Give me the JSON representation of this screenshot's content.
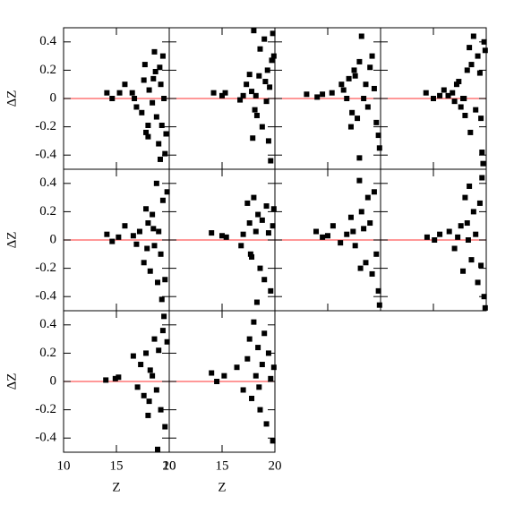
{
  "chart_data": [
    {
      "type": "scatter",
      "ylabel": "ΔZ",
      "color": "#000000",
      "xlim": [
        10,
        20
      ],
      "ylim": [
        -0.5,
        0.5
      ],
      "xticks": [
        10,
        15,
        20
      ],
      "yticks": [
        -0.4,
        -0.2,
        0,
        0.2,
        0.4
      ],
      "xtick_labels": false,
      "ytick_labels": true,
      "reference_line": {
        "y": 0,
        "color": "#ff5a5a"
      },
      "x": [
        14.1,
        14.6,
        15.3,
        15.8,
        16.5,
        16.7,
        16.9,
        17.4,
        17.6,
        17.7,
        17.8,
        18.0,
        18.1,
        18.4,
        18.6,
        18.7,
        18.8,
        19.0,
        19.1,
        19.2,
        19.3,
        19.4,
        19.5,
        19.6,
        19.7,
        19.15,
        18.5,
        18.0
      ],
      "values": [
        0.04,
        0.0,
        0.04,
        0.1,
        0.04,
        0.0,
        -0.06,
        -0.1,
        0.13,
        0.24,
        -0.24,
        -0.27,
        0.06,
        -0.03,
        0.33,
        0.19,
        -0.13,
        -0.32,
        0.22,
        0.1,
        -0.19,
        0.3,
        0.0,
        -0.39,
        -0.25,
        -0.43,
        0.14,
        -0.19
      ]
    },
    {
      "type": "scatter",
      "color": "#000000",
      "xlim": [
        10,
        20
      ],
      "ylim": [
        -0.5,
        0.5
      ],
      "xticks": [
        10,
        15,
        20
      ],
      "yticks": [
        -0.4,
        -0.2,
        0,
        0.2,
        0.4
      ],
      "xtick_labels": false,
      "ytick_labels": false,
      "reference_line": {
        "y": 0,
        "color": "#ff5a5a"
      },
      "x": [
        14.2,
        15.0,
        15.3,
        16.7,
        17.0,
        17.3,
        17.6,
        17.8,
        18.0,
        18.2,
        18.3,
        18.5,
        18.6,
        18.8,
        19.0,
        19.1,
        19.3,
        19.4,
        19.5,
        19.6,
        19.7,
        19.8,
        18.1,
        17.9,
        19.2,
        19.9
      ],
      "values": [
        0.04,
        0.02,
        0.04,
        -0.01,
        0.02,
        0.1,
        0.17,
        0.05,
        0.48,
        0.02,
        -0.12,
        0.16,
        0.35,
        -0.2,
        0.42,
        0.12,
        0.2,
        -0.3,
        0.08,
        -0.44,
        0.27,
        0.46,
        -0.08,
        -0.28,
        -0.02,
        0.3
      ]
    },
    {
      "type": "scatter",
      "color": "#000000",
      "xlim": [
        10,
        20
      ],
      "ylim": [
        -0.5,
        0.5
      ],
      "xticks": [
        10,
        15,
        20
      ],
      "yticks": [
        -0.4,
        -0.2,
        0,
        0.2,
        0.4
      ],
      "xtick_labels": false,
      "ytick_labels": false,
      "reference_line": {
        "y": 0,
        "color": "#ff5a5a"
      },
      "x": [
        13.0,
        14.0,
        14.5,
        15.4,
        16.3,
        16.5,
        16.8,
        17.0,
        17.3,
        17.5,
        17.6,
        17.8,
        18.0,
        18.2,
        18.4,
        18.6,
        18.8,
        19.0,
        19.2,
        19.4,
        19.6,
        19.8,
        19.9,
        18.0,
        17.2
      ],
      "values": [
        0.03,
        0.01,
        0.03,
        0.04,
        0.1,
        0.06,
        0.0,
        0.14,
        -0.1,
        0.2,
        0.16,
        -0.14,
        0.26,
        0.44,
        0.0,
        0.1,
        -0.06,
        0.22,
        0.3,
        0.07,
        -0.17,
        -0.26,
        -0.35,
        -0.42,
        -0.2
      ]
    },
    {
      "type": "scatter",
      "color": "#000000",
      "xlim": [
        10,
        20
      ],
      "ylim": [
        -0.5,
        0.5
      ],
      "xticks": [
        10,
        15,
        20
      ],
      "yticks": [
        -0.4,
        -0.2,
        0,
        0.2,
        0.4
      ],
      "xtick_labels": false,
      "ytick_labels": false,
      "reference_line": {
        "y": 0,
        "color": "#ff5a5a"
      },
      "x": [
        14.3,
        15.0,
        15.6,
        16.0,
        16.4,
        16.8,
        17.0,
        17.2,
        17.4,
        17.6,
        17.8,
        18.0,
        18.2,
        18.4,
        18.6,
        18.8,
        19.0,
        19.2,
        19.4,
        19.6,
        19.8,
        19.9,
        19.7,
        19.5,
        18.5,
        17.9
      ],
      "values": [
        0.04,
        0.0,
        0.02,
        0.06,
        0.02,
        0.04,
        -0.02,
        0.1,
        0.12,
        -0.06,
        0.0,
        -0.12,
        0.2,
        0.36,
        0.24,
        0.44,
        -0.08,
        0.3,
        0.18,
        -0.38,
        0.4,
        0.34,
        -0.46,
        -0.14,
        -0.24,
        0.0
      ]
    },
    {
      "type": "scatter",
      "ylabel": "ΔZ",
      "color": "#000000",
      "xlim": [
        10,
        20
      ],
      "ylim": [
        -0.5,
        0.5
      ],
      "xticks": [
        10,
        15,
        20
      ],
      "yticks": [
        -0.4,
        -0.2,
        0,
        0.2,
        0.4
      ],
      "xtick_labels": false,
      "ytick_labels": true,
      "reference_line": {
        "y": 0,
        "color": "#ff5a5a"
      },
      "x": [
        14.1,
        14.6,
        15.2,
        15.8,
        16.6,
        16.9,
        17.2,
        17.6,
        17.8,
        18.0,
        18.2,
        18.4,
        18.6,
        18.8,
        19.0,
        19.2,
        19.4,
        19.6,
        19.8,
        19.3,
        18.9,
        17.9,
        18.5
      ],
      "values": [
        0.04,
        -0.01,
        0.02,
        0.1,
        0.03,
        -0.03,
        0.06,
        -0.16,
        0.22,
        0.12,
        -0.22,
        0.18,
        -0.04,
        0.4,
        0.06,
        -0.1,
        0.28,
        -0.28,
        0.34,
        -0.42,
        -0.3,
        -0.06,
        0.08
      ]
    },
    {
      "type": "scatter",
      "color": "#000000",
      "xlim": [
        10,
        20
      ],
      "ylim": [
        -0.5,
        0.5
      ],
      "xticks": [
        10,
        15,
        20
      ],
      "yticks": [
        -0.4,
        -0.2,
        0,
        0.2,
        0.4
      ],
      "xtick_labels": false,
      "ytick_labels": false,
      "reference_line": {
        "y": 0,
        "color": "#ff5a5a"
      },
      "x": [
        14.0,
        15.0,
        15.4,
        16.8,
        17.0,
        17.4,
        17.6,
        17.8,
        18.0,
        18.2,
        18.4,
        18.6,
        18.8,
        19.0,
        19.2,
        19.4,
        19.6,
        19.8,
        19.9,
        18.3,
        17.7
      ],
      "values": [
        0.05,
        0.03,
        0.02,
        -0.04,
        0.04,
        0.26,
        0.12,
        -0.12,
        0.3,
        0.06,
        0.18,
        -0.2,
        0.14,
        -0.28,
        0.24,
        0.05,
        -0.36,
        0.1,
        0.22,
        -0.44,
        -0.1
      ]
    },
    {
      "type": "scatter",
      "color": "#000000",
      "xlim": [
        10,
        20
      ],
      "ylim": [
        -0.5,
        0.5
      ],
      "xticks": [
        10,
        15,
        20
      ],
      "yticks": [
        -0.4,
        -0.2,
        0,
        0.2,
        0.4
      ],
      "xtick_labels": false,
      "ytick_labels": false,
      "reference_line": {
        "y": 0,
        "color": "#ff5a5a"
      },
      "x": [
        13.9,
        14.5,
        15.0,
        15.5,
        16.2,
        16.8,
        17.2,
        17.6,
        18.0,
        18.2,
        18.4,
        18.6,
        18.8,
        19.0,
        19.2,
        19.4,
        19.6,
        19.8,
        19.9,
        18.1,
        17.4
      ],
      "values": [
        0.06,
        0.02,
        0.03,
        0.1,
        -0.02,
        0.04,
        0.16,
        -0.04,
        0.42,
        0.2,
        0.08,
        -0.16,
        0.3,
        0.12,
        -0.24,
        0.34,
        -0.1,
        -0.36,
        -0.46,
        -0.2,
        0.06
      ]
    },
    {
      "type": "scatter",
      "color": "#000000",
      "xlim": [
        10,
        20
      ],
      "ylim": [
        -0.5,
        0.5
      ],
      "xticks": [
        10,
        15,
        20
      ],
      "yticks": [
        -0.4,
        -0.2,
        0,
        0.2,
        0.4
      ],
      "xtick_labels": false,
      "ytick_labels": false,
      "reference_line": {
        "y": 0,
        "color": "#ff5a5a"
      },
      "x": [
        14.4,
        15.1,
        15.6,
        16.5,
        17.0,
        17.3,
        17.6,
        17.8,
        18.0,
        18.2,
        18.4,
        18.6,
        18.8,
        19.0,
        19.2,
        19.4,
        19.6,
        19.8,
        19.9,
        19.5,
        18.3
      ],
      "values": [
        0.02,
        0.0,
        0.04,
        0.06,
        -0.06,
        0.02,
        0.1,
        -0.22,
        0.3,
        0.12,
        0.38,
        -0.14,
        0.2,
        0.04,
        -0.3,
        0.26,
        0.44,
        -0.4,
        -0.48,
        -0.18,
        0.0
      ]
    },
    {
      "type": "scatter",
      "xlabel": "Z",
      "ylabel": "ΔZ",
      "color": "#000000",
      "xlim": [
        10,
        20
      ],
      "ylim": [
        -0.5,
        0.5
      ],
      "xticks": [
        10,
        15,
        20
      ],
      "yticks": [
        -0.4,
        -0.2,
        0,
        0.2,
        0.4
      ],
      "xtick_labels": true,
      "ytick_labels": true,
      "reference_line": {
        "y": 0,
        "color": "#ff5a5a"
      },
      "x": [
        14.0,
        14.9,
        15.2,
        16.6,
        17.0,
        17.3,
        17.6,
        17.8,
        18.0,
        18.2,
        18.4,
        18.6,
        18.8,
        19.0,
        19.2,
        19.4,
        19.6,
        19.8,
        18.9,
        18.1,
        19.5
      ],
      "values": [
        0.01,
        0.02,
        0.03,
        0.18,
        -0.04,
        0.12,
        -0.1,
        0.2,
        -0.24,
        0.08,
        0.04,
        0.3,
        -0.06,
        0.22,
        -0.2,
        0.36,
        -0.32,
        0.28,
        -0.48,
        -0.14,
        0.46
      ]
    },
    {
      "type": "scatter",
      "xlabel": "Z",
      "color": "#000000",
      "xlim": [
        10,
        20
      ],
      "ylim": [
        -0.5,
        0.5
      ],
      "xticks": [
        10,
        15,
        20
      ],
      "yticks": [
        -0.4,
        -0.2,
        0,
        0.2,
        0.4
      ],
      "xtick_labels": true,
      "ytick_labels": false,
      "reference_line": {
        "y": 0,
        "color": "#ff5a5a"
      },
      "x": [
        14.0,
        14.5,
        15.2,
        16.4,
        17.0,
        17.4,
        17.6,
        17.8,
        18.0,
        18.2,
        18.4,
        18.6,
        18.8,
        19.0,
        19.2,
        19.4,
        19.6,
        19.8,
        18.5,
        19.9
      ],
      "values": [
        0.06,
        0.0,
        0.04,
        0.1,
        -0.06,
        0.16,
        0.3,
        -0.12,
        0.42,
        0.04,
        0.24,
        -0.2,
        0.12,
        0.34,
        -0.3,
        0.2,
        0.02,
        -0.42,
        -0.04,
        0.1
      ]
    }
  ]
}
